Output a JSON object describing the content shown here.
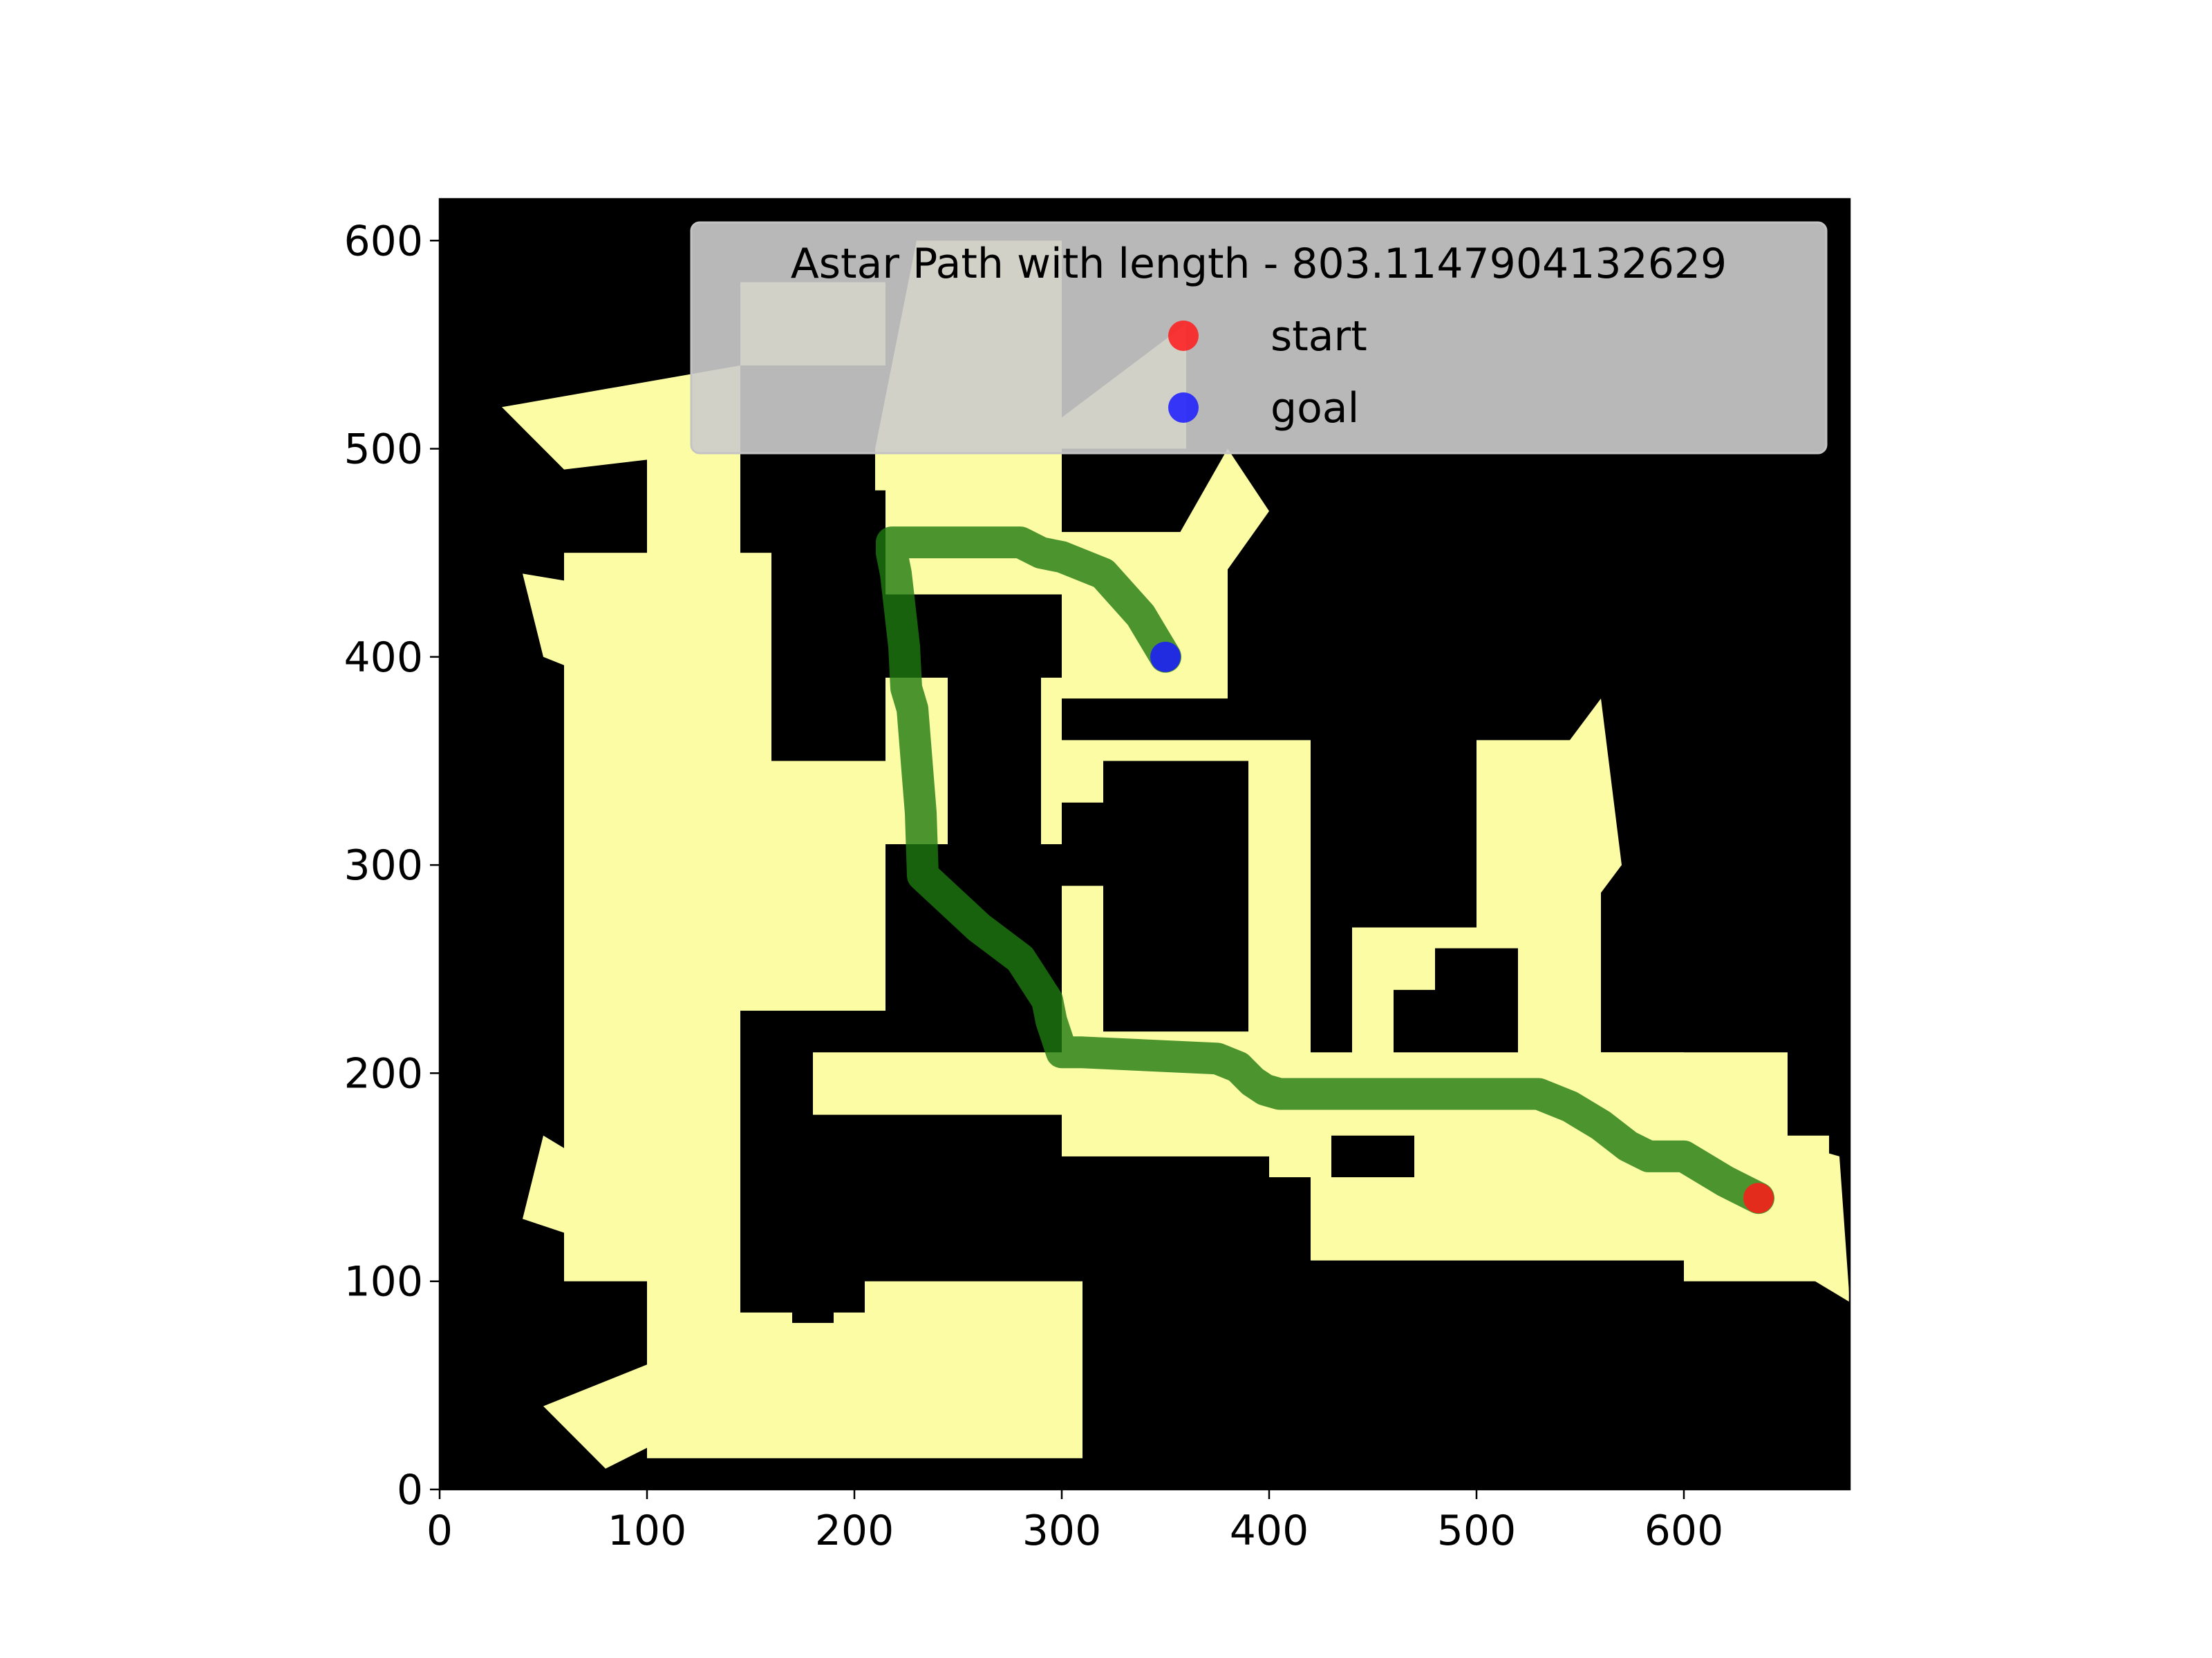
{
  "chart_data": {
    "type": "line",
    "background": "occupancy-map",
    "title": "",
    "xlabel": "",
    "ylabel": "",
    "xlim": [
      0,
      680
    ],
    "ylim": [
      0,
      620
    ],
    "xticks": [
      "0",
      "100",
      "200",
      "300",
      "400",
      "500",
      "600"
    ],
    "yticks": [
      "0",
      "100",
      "200",
      "300",
      "400",
      "500",
      "600"
    ],
    "grid": false,
    "legend": {
      "title": "Astar Path with length - 803.1147904132629",
      "placement": "top-right",
      "entries": [
        {
          "label": "start",
          "color": "#ff1a1a"
        },
        {
          "label": "goal",
          "color": "#1a1aff"
        }
      ]
    },
    "series": [
      {
        "color": "#1f7a10",
        "x": [
          636,
          620,
          600,
          583,
          573,
          560,
          545,
          530,
          520,
          405,
          398,
          392,
          385,
          375,
          310,
          300,
          298,
          295,
          293,
          280,
          260,
          233,
          232,
          228,
          225,
          224,
          220,
          218,
          218,
          225,
          280,
          290,
          300,
          320,
          338,
          350
        ],
        "y": [
          140,
          148,
          160,
          160,
          165,
          175,
          184,
          190,
          190,
          190,
          192,
          196,
          203,
          207,
          210,
          210,
          216,
          225,
          235,
          255,
          270,
          295,
          325,
          375,
          385,
          405,
          440,
          450,
          455,
          455,
          455,
          450,
          448,
          440,
          420,
          400
        ]
      },
      {
        "name": "start",
        "color": "#ff1a1a",
        "points": [
          [
            636,
            140
          ]
        ]
      },
      {
        "name": "goal",
        "color": "#1a1aff",
        "points": [
          [
            350,
            400
          ]
        ]
      }
    ],
    "colors": {
      "free_space": "#fcfca4",
      "obstacle": "#000000"
    }
  }
}
